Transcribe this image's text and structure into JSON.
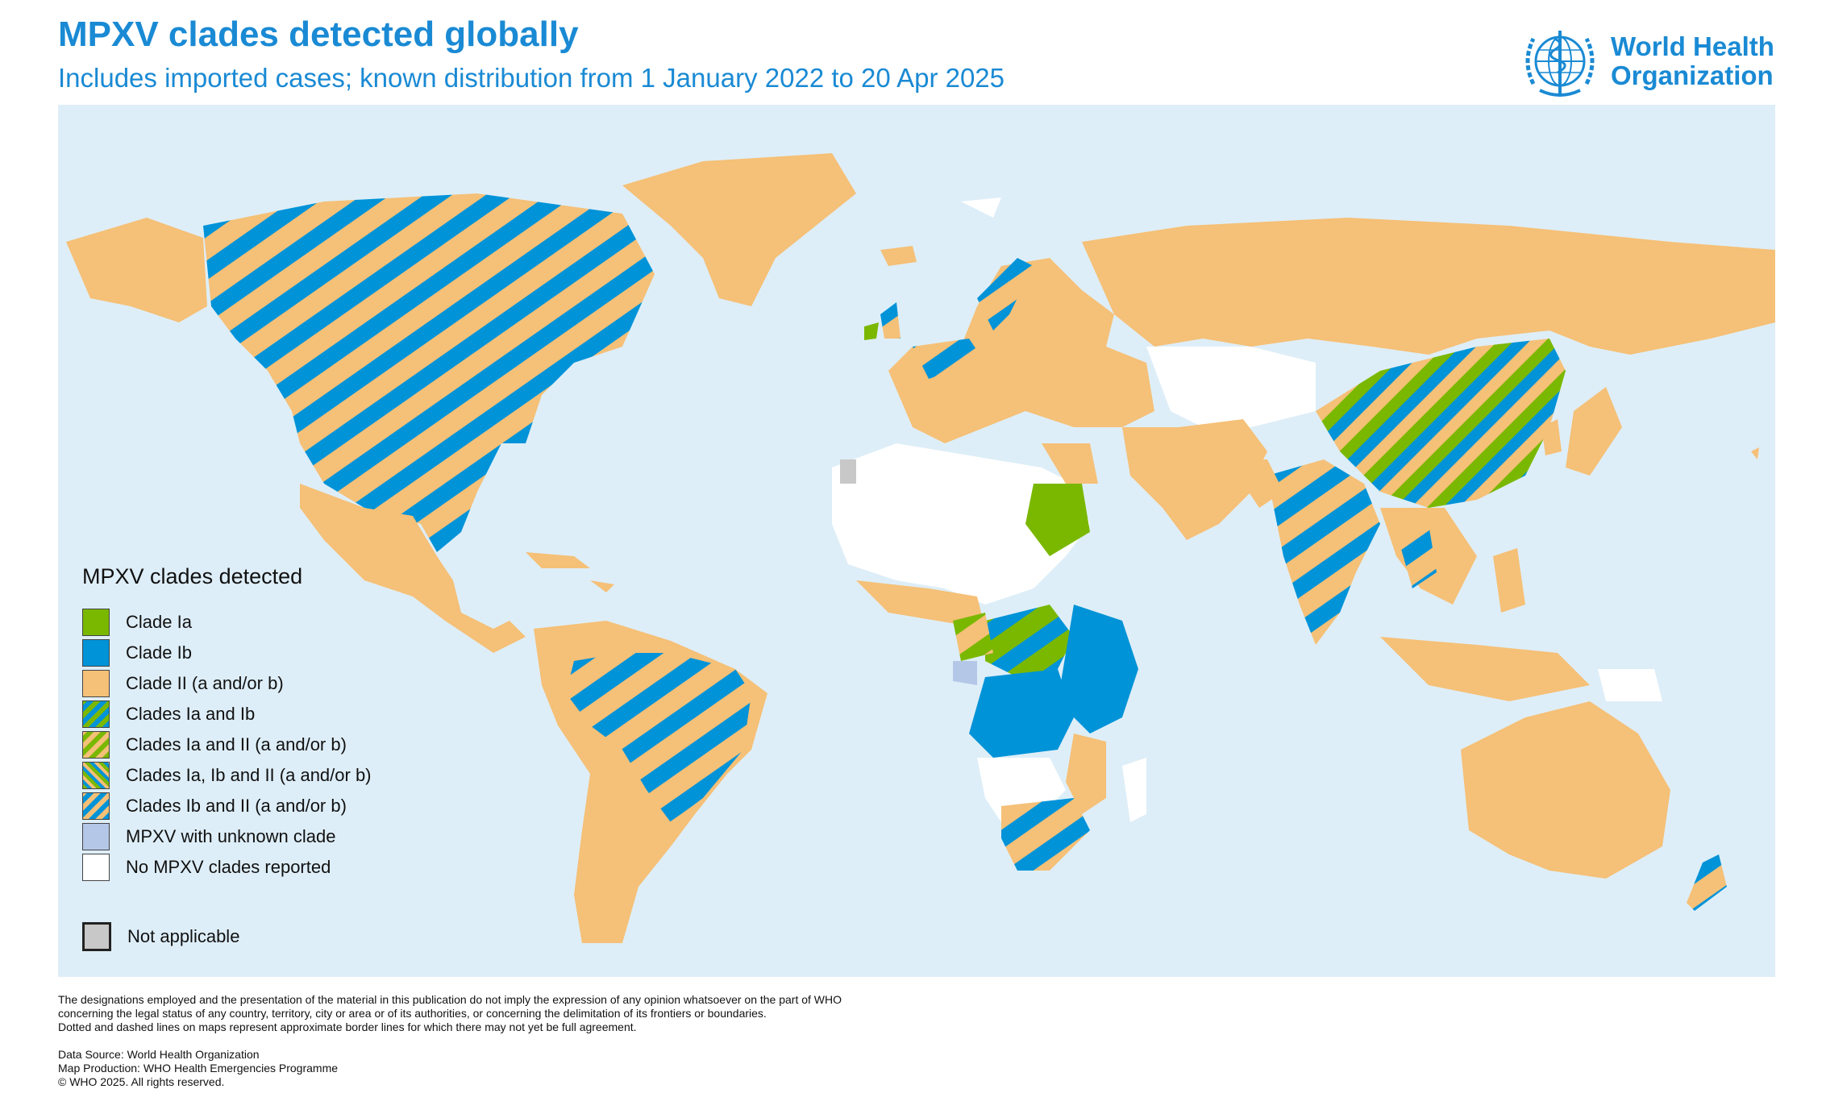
{
  "header": {
    "title": "MPXV clades detected globally",
    "subtitle": "Includes imported cases; known distribution from 1 January 2022 to 20 Apr 2025"
  },
  "logo": {
    "line1": "World Health",
    "line2": "Organization",
    "icon": "who-emblem-icon"
  },
  "colors": {
    "ocean": "#deeef8",
    "clade_ia": "#7ab800",
    "clade_ib": "#0093d8",
    "clade_ii": "#f5c077",
    "unknown": "#b4c7e7",
    "none": "#ffffff",
    "not_applicable": "#c8c8c8",
    "title": "#1a8ad4"
  },
  "legend": {
    "title": "MPXV clades detected",
    "items": [
      {
        "label": "Clade Ia",
        "pattern": "solid-ia"
      },
      {
        "label": "Clade Ib",
        "pattern": "solid-ib"
      },
      {
        "label": "Clade II (a and/or b)",
        "pattern": "solid-ii"
      },
      {
        "label": "Clades Ia and Ib",
        "pattern": "stripe-ia-ib"
      },
      {
        "label": "Clades Ia and II (a and/or b)",
        "pattern": "stripe-ia-ii"
      },
      {
        "label": "Clades Ia, Ib and II (a and/or b)",
        "pattern": "stripe-ia-ib-ii"
      },
      {
        "label": "Clades Ib and II (a and/or b)",
        "pattern": "stripe-ib-ii"
      },
      {
        "label": "MPXV with unknown clade",
        "pattern": "solid-unknown"
      },
      {
        "label": "No MPXV clades reported",
        "pattern": "solid-none"
      }
    ],
    "not_applicable": "Not applicable"
  },
  "footer": {
    "disclaimer": [
      "The designations employed and the presentation of the material in this publication do not imply the expression of any opinion whatsoever on the part of WHO",
      "concerning the legal status of any country, territory, city or area or of its authorities, or concerning the delimitation of its frontiers or boundaries.",
      "Dotted and dashed lines on maps represent approximate border lines for which there may not yet be full agreement."
    ],
    "credits": [
      "Data Source: World Health Organization",
      "Map Production: WHO Health Emergencies Programme",
      "© WHO 2025. All rights reserved."
    ]
  }
}
